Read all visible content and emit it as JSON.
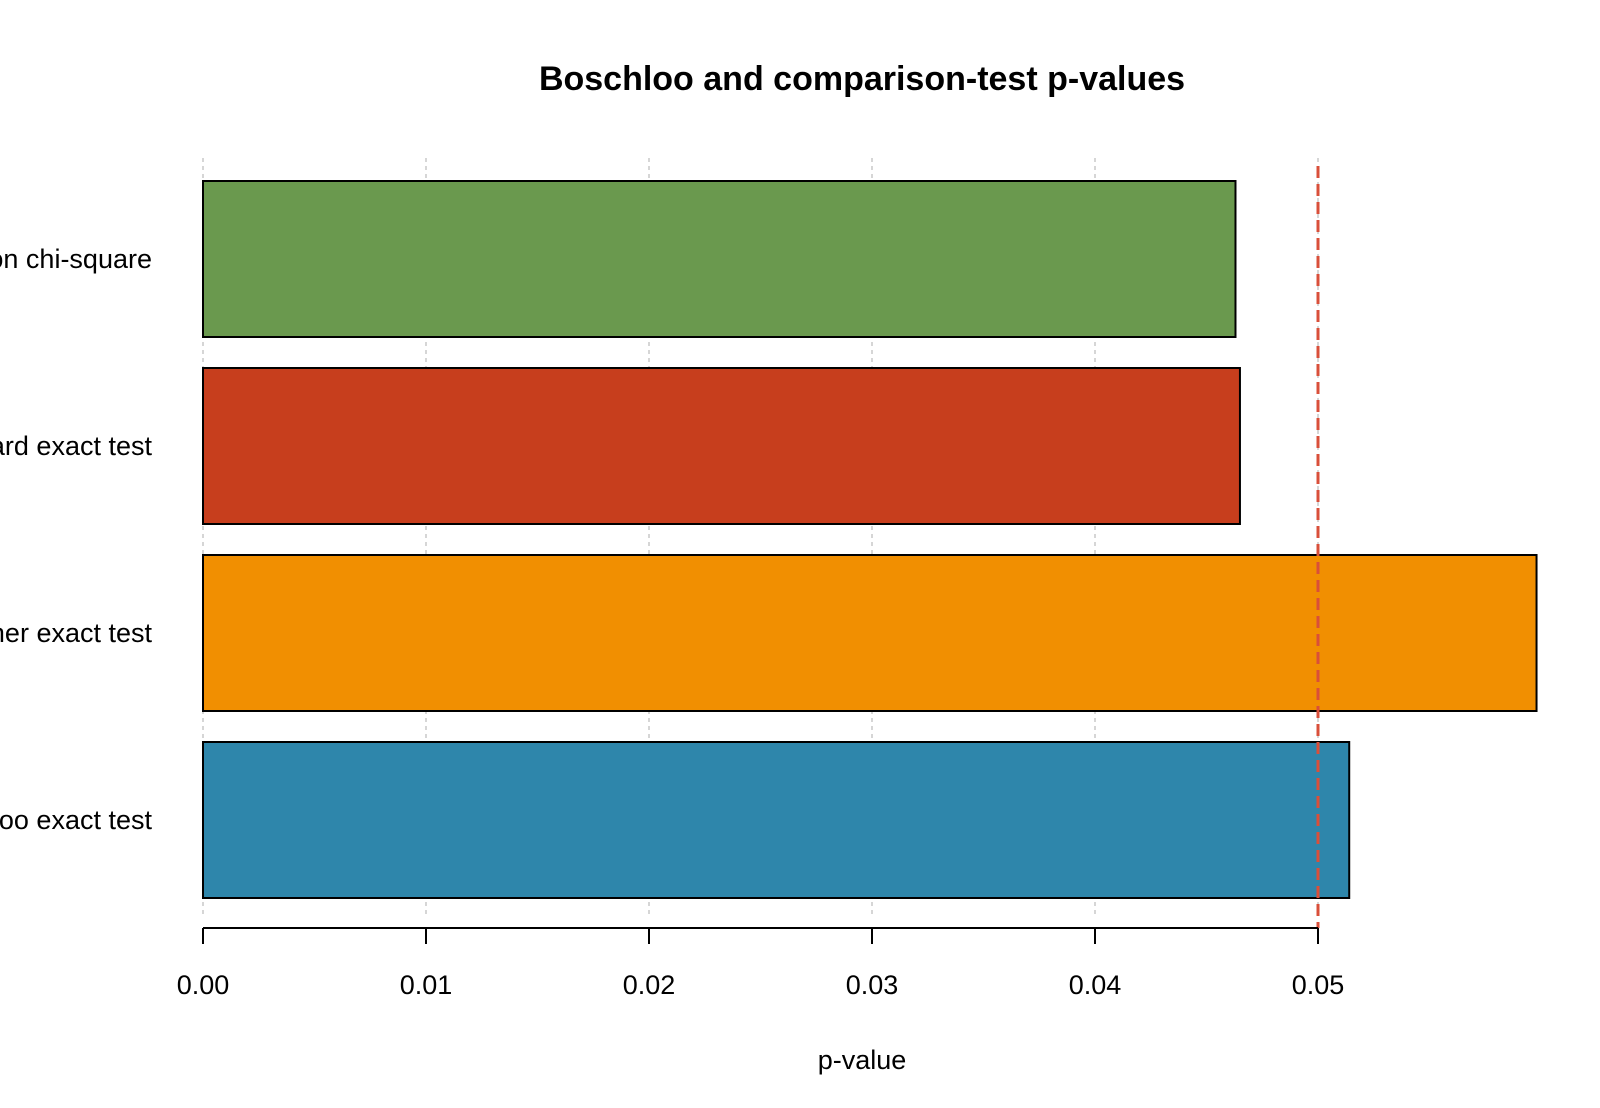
{
  "chart_data": {
    "type": "bar",
    "orientation": "horizontal",
    "title": "Boschloo and comparison-test p-values",
    "xlabel": "p-value",
    "ylabel": "",
    "categories": [
      "Pearson chi-square",
      "Barnard exact test",
      "Fisher exact test",
      "Boschloo exact test"
    ],
    "values": [
      0.0463,
      0.0465,
      0.0598,
      0.0514
    ],
    "colors": [
      "#6A994E",
      "#C73E1D",
      "#F18F01",
      "#2E86AB"
    ],
    "xlim": [
      0,
      0.0598
    ],
    "xticks": [
      "0.00",
      "0.01",
      "0.02",
      "0.03",
      "0.04",
      "0.05"
    ],
    "reference_line": {
      "value": 0.05,
      "color": "#D94F3A",
      "style": "dashed"
    },
    "grid": "vertical dotted"
  }
}
